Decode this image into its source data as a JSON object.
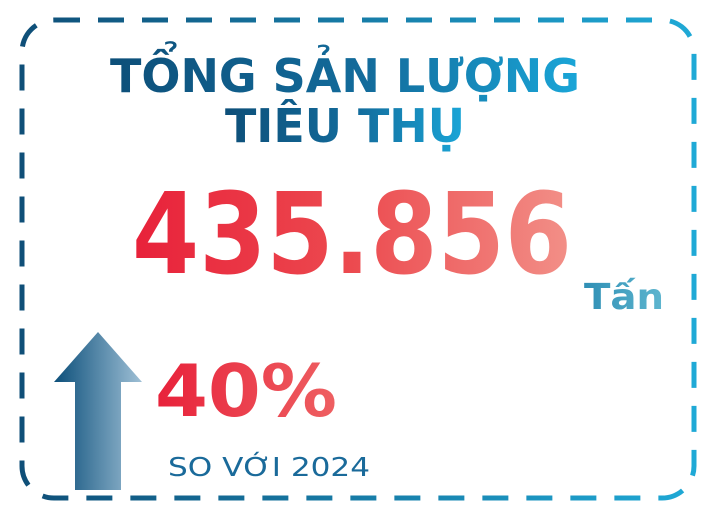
{
  "header": {
    "title_lines": [
      "TỔNG SẢN LƯỢNG",
      "TIÊU THỤ"
    ]
  },
  "metric": {
    "value": "435.856",
    "unit": "Tấn"
  },
  "change": {
    "value": "40%",
    "comparison": "SO VỚI 2024"
  }
}
